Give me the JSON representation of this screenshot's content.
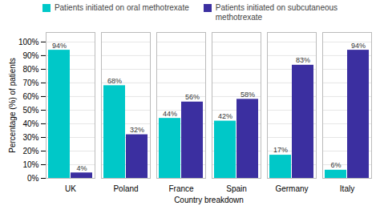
{
  "chart_data": {
    "type": "bar",
    "xlabel": "Country breakdown",
    "ylabel": "Percentage (%) of patients",
    "categories": [
      "UK",
      "Poland",
      "France",
      "Spain",
      "Germany",
      "Italy"
    ],
    "series": [
      {
        "name": "Patients initiated on oral methotrexate",
        "color": "#00C8C8",
        "values": [
          94,
          68,
          44,
          42,
          17,
          6
        ],
        "value_labels": [
          "94%",
          "68%",
          "44%",
          "42%",
          "17%",
          "6%"
        ]
      },
      {
        "name": "Patients initiated on subcutaneous\nmethotrexate",
        "color": "#3B2FA0",
        "values": [
          4,
          32,
          56,
          58,
          83,
          94
        ],
        "value_labels": [
          "4%",
          "32%",
          "56%",
          "58%",
          "83%",
          "94%"
        ]
      }
    ],
    "ylim": [
      0,
      107
    ],
    "yticks": [
      {
        "value": 0,
        "label": "0%"
      },
      {
        "value": 10,
        "label": "10%"
      },
      {
        "value": 20,
        "label": "20%"
      },
      {
        "value": 30,
        "label": "30%"
      },
      {
        "value": 40,
        "label": "40%"
      },
      {
        "value": 50,
        "label": "50%"
      },
      {
        "value": 60,
        "label": "60%"
      },
      {
        "value": 70,
        "label": "70%"
      },
      {
        "value": 80,
        "label": "80%"
      },
      {
        "value": 90,
        "label": "90%"
      },
      {
        "value": 100,
        "label": "100%"
      }
    ],
    "grid": true,
    "legend": "upper center",
    "data_labels": true
  }
}
